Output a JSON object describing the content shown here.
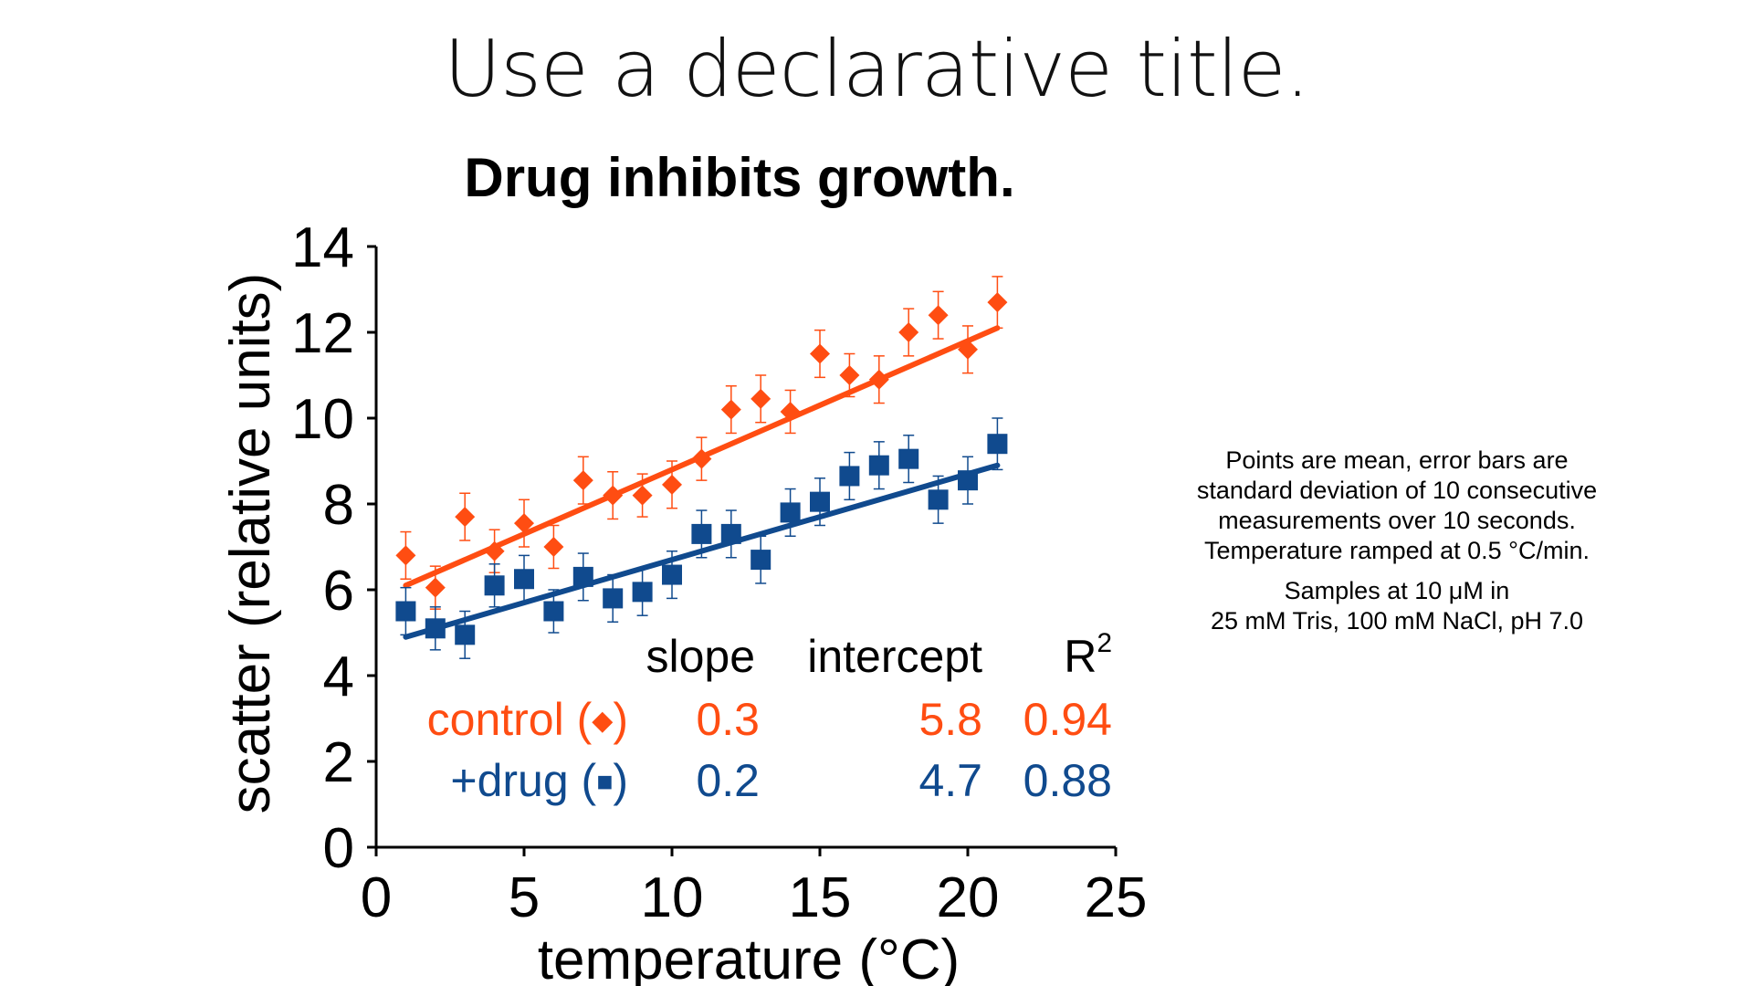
{
  "slide": {
    "title": "Use a declarative title."
  },
  "colors": {
    "control": "#ff4d12",
    "drug": "#104a8e",
    "axis": "#000000"
  },
  "chart_data": {
    "type": "scatter",
    "title": "Drug inhibits growth.",
    "xlabel": "temperature (°C)",
    "ylabel": "scatter (relative units)",
    "xlim": [
      0,
      25
    ],
    "ylim": [
      0,
      14
    ],
    "xticks": [
      0,
      5,
      10,
      15,
      20,
      25
    ],
    "yticks": [
      0,
      2,
      4,
      6,
      8,
      10,
      12,
      14
    ],
    "grid": false,
    "x": [
      1,
      2,
      3,
      4,
      5,
      6,
      7,
      8,
      9,
      10,
      11,
      12,
      13,
      14,
      15,
      16,
      17,
      18,
      19,
      20,
      21
    ],
    "series": [
      {
        "key": "control",
        "marker": "diamond",
        "values": [
          6.8,
          6.05,
          7.7,
          6.9,
          7.55,
          7.0,
          8.55,
          8.2,
          8.2,
          8.45,
          9.05,
          10.2,
          10.45,
          10.15,
          11.5,
          11.0,
          10.9,
          12.0,
          12.4,
          11.6,
          12.7
        ],
        "errors": [
          0.55,
          0.5,
          0.55,
          0.5,
          0.55,
          0.5,
          0.55,
          0.55,
          0.5,
          0.55,
          0.5,
          0.55,
          0.55,
          0.5,
          0.55,
          0.5,
          0.55,
          0.55,
          0.55,
          0.55,
          0.6
        ],
        "fit": {
          "slope": 0.3,
          "intercept": 5.8
        }
      },
      {
        "key": "drug",
        "marker": "square",
        "values": [
          5.5,
          5.1,
          4.95,
          6.1,
          6.25,
          5.5,
          6.3,
          5.8,
          5.95,
          6.35,
          7.3,
          7.3,
          6.7,
          7.8,
          8.05,
          8.65,
          8.9,
          9.05,
          8.1,
          8.55,
          9.4
        ],
        "errors": [
          0.55,
          0.5,
          0.55,
          0.5,
          0.55,
          0.5,
          0.55,
          0.55,
          0.55,
          0.55,
          0.55,
          0.55,
          0.55,
          0.55,
          0.55,
          0.55,
          0.55,
          0.55,
          0.55,
          0.55,
          0.6
        ],
        "fit": {
          "slope": 0.2,
          "intercept": 4.7
        }
      }
    ],
    "stats_table": {
      "headers": [
        "slope",
        "intercept",
        "R"
      ],
      "r2_superscript": "2",
      "rows": [
        {
          "label": "control (",
          "marker_symbol": "◆",
          "close": ")",
          "slope": "0.3",
          "intercept": "5.8",
          "r2": "0.94"
        },
        {
          "label": "+drug (",
          "marker_symbol": "■",
          "close": ")",
          "slope": "0.2",
          "intercept": "4.7",
          "r2": "0.88"
        }
      ]
    }
  },
  "notes": {
    "line1": "Points are mean, error bars are",
    "line2": "standard deviation of 10 consecutive",
    "line3": "measurements over 10 seconds.",
    "line4": "Temperature ramped at 0.5 °C/min.",
    "line5": "Samples at 10 μM in",
    "line6": "25 mM Tris, 100 mM NaCl, pH 7.0"
  }
}
